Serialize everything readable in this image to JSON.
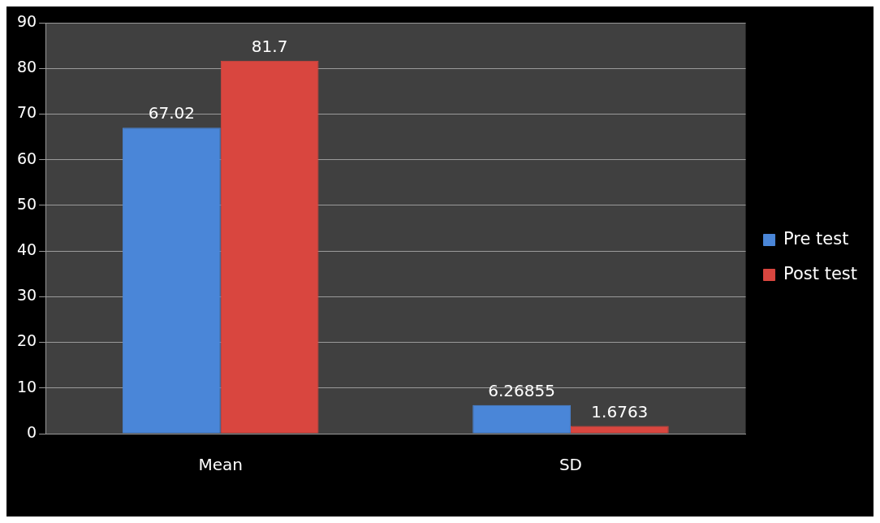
{
  "chart_data": {
    "type": "bar",
    "categories": [
      "Mean",
      "SD"
    ],
    "series": [
      {
        "name": "Pre test",
        "color": "#4a86d8",
        "values": [
          67.02,
          6.26855
        ]
      },
      {
        "name": "Post test",
        "color": "#d9463f",
        "values": [
          81.7,
          1.6763
        ]
      }
    ],
    "ylim": [
      0,
      90
    ],
    "yticks": [
      0,
      10,
      20,
      30,
      40,
      50,
      60,
      70,
      80,
      90
    ],
    "grid": "y",
    "legend": "right",
    "data_labels": true
  }
}
